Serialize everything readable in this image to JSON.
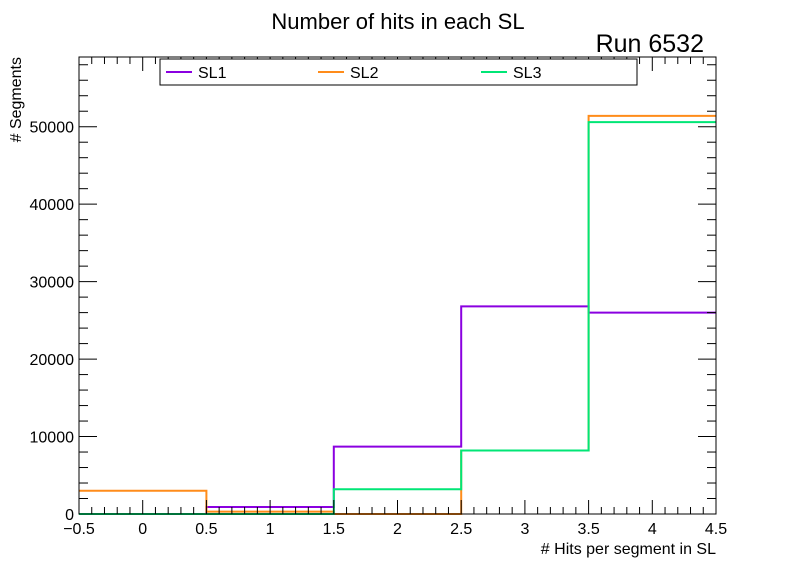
{
  "chart_data": {
    "type": "histogram",
    "title": "Number of hits in each SL",
    "annotation": "Run 6532",
    "xlabel": "# Hits per segment in SL",
    "ylabel": "# Segments",
    "xlim": [
      -0.5,
      4.5
    ],
    "ylim": [
      0,
      59000
    ],
    "bin_edges": [
      -0.5,
      0.5,
      1.5,
      2.5,
      3.5,
      4.5
    ],
    "x_ticks": [
      "−0.5",
      "0",
      "0.5",
      "1",
      "1.5",
      "2",
      "2.5",
      "3",
      "3.5",
      "4",
      "4.5"
    ],
    "x_tick_values": [
      -0.5,
      0,
      0.5,
      1,
      1.5,
      2,
      2.5,
      3,
      3.5,
      4,
      4.5
    ],
    "y_ticks": [
      "0",
      "10000",
      "20000",
      "30000",
      "40000",
      "50000"
    ],
    "y_tick_values": [
      0,
      10000,
      20000,
      30000,
      40000,
      50000
    ],
    "legend_position": "top",
    "series": [
      {
        "name": "SL1",
        "color": "#8a00e0",
        "values": [
          0,
          900,
          8700,
          26800,
          26000
        ]
      },
      {
        "name": "SL2",
        "color": "#ff8c1a",
        "values": [
          3000,
          300,
          0,
          8200,
          51400
        ]
      },
      {
        "name": "SL3",
        "color": "#00e676",
        "values": [
          0,
          0,
          3200,
          8200,
          50600
        ]
      }
    ]
  }
}
